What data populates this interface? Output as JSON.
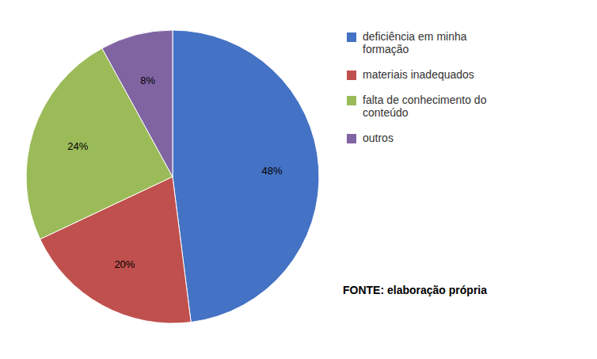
{
  "chart_data": {
    "type": "pie",
    "categories": [
      "deficiência em minha\nformação",
      "materiais inadequados",
      "falta de conhecimento do\nconteúdo",
      "outros"
    ],
    "values": [
      48,
      20,
      24,
      8
    ],
    "value_labels": [
      "48%",
      "20%",
      "24%",
      "8%"
    ],
    "colors": [
      "#4472C4",
      "#C0504D",
      "#9BBB59",
      "#8064A2"
    ],
    "data_labels": true,
    "legend": "right",
    "annotations": [
      "FONTE: elaboração própria"
    ]
  }
}
